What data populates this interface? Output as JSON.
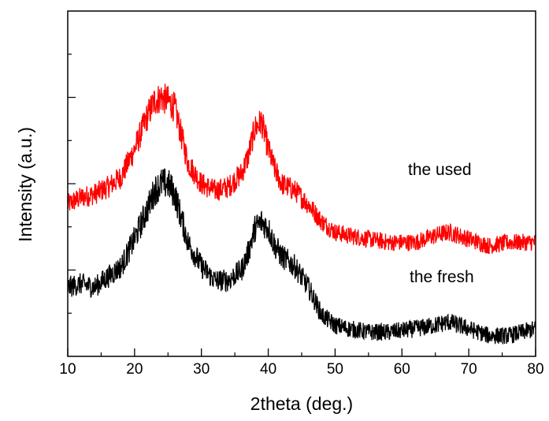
{
  "chart_data": {
    "type": "line",
    "title": "",
    "xlabel": "2theta (deg.)",
    "ylabel": "Intensity (a.u.)",
    "xlim": [
      10,
      80
    ],
    "ylim": [
      0,
      1
    ],
    "x_ticks": [
      10,
      20,
      30,
      40,
      50,
      60,
      70,
      80
    ],
    "x_tick_labels": [
      "10",
      "20",
      "30",
      "40",
      "50",
      "60",
      "70",
      "80"
    ],
    "y_tick_labels_shown": false,
    "grid": false,
    "legend": "none",
    "annotations": [
      "the used",
      "the fresh"
    ],
    "series": [
      {
        "name": "the used",
        "color": "#ff0000",
        "points": [
          [
            10,
            0.44
          ],
          [
            12,
            0.46
          ],
          [
            14,
            0.47
          ],
          [
            16,
            0.49
          ],
          [
            18,
            0.52
          ],
          [
            20,
            0.6
          ],
          [
            22,
            0.7
          ],
          [
            23,
            0.74
          ],
          [
            24,
            0.75
          ],
          [
            25,
            0.74
          ],
          [
            26,
            0.72
          ],
          [
            27,
            0.64
          ],
          [
            28,
            0.56
          ],
          [
            30,
            0.5
          ],
          [
            32,
            0.48
          ],
          [
            34,
            0.49
          ],
          [
            36,
            0.53
          ],
          [
            37,
            0.58
          ],
          [
            38,
            0.66
          ],
          [
            39,
            0.68
          ],
          [
            40,
            0.6
          ],
          [
            41,
            0.54
          ],
          [
            42,
            0.5
          ],
          [
            44,
            0.48
          ],
          [
            46,
            0.44
          ],
          [
            48,
            0.39
          ],
          [
            50,
            0.36
          ],
          [
            52,
            0.35
          ],
          [
            55,
            0.34
          ],
          [
            58,
            0.33
          ],
          [
            62,
            0.33
          ],
          [
            65,
            0.35
          ],
          [
            67,
            0.36
          ],
          [
            70,
            0.34
          ],
          [
            73,
            0.32
          ],
          [
            76,
            0.33
          ],
          [
            78,
            0.33
          ],
          [
            80,
            0.33
          ]
        ]
      },
      {
        "name": "the fresh",
        "color": "#000000",
        "points": [
          [
            10,
            0.2
          ],
          [
            12,
            0.21
          ],
          [
            14,
            0.2
          ],
          [
            16,
            0.23
          ],
          [
            18,
            0.26
          ],
          [
            20,
            0.34
          ],
          [
            22,
            0.43
          ],
          [
            23,
            0.48
          ],
          [
            24,
            0.5
          ],
          [
            25,
            0.5
          ],
          [
            26,
            0.47
          ],
          [
            27,
            0.4
          ],
          [
            28,
            0.33
          ],
          [
            30,
            0.26
          ],
          [
            32,
            0.22
          ],
          [
            34,
            0.22
          ],
          [
            36,
            0.25
          ],
          [
            37,
            0.3
          ],
          [
            38,
            0.37
          ],
          [
            39,
            0.39
          ],
          [
            40,
            0.37
          ],
          [
            41,
            0.32
          ],
          [
            42,
            0.29
          ],
          [
            44,
            0.26
          ],
          [
            46,
            0.2
          ],
          [
            48,
            0.12
          ],
          [
            50,
            0.09
          ],
          [
            52,
            0.08
          ],
          [
            55,
            0.07
          ],
          [
            58,
            0.07
          ],
          [
            62,
            0.08
          ],
          [
            65,
            0.09
          ],
          [
            67,
            0.1
          ],
          [
            70,
            0.08
          ],
          [
            73,
            0.06
          ],
          [
            76,
            0.06
          ],
          [
            78,
            0.07
          ],
          [
            80,
            0.08
          ]
        ]
      }
    ]
  }
}
